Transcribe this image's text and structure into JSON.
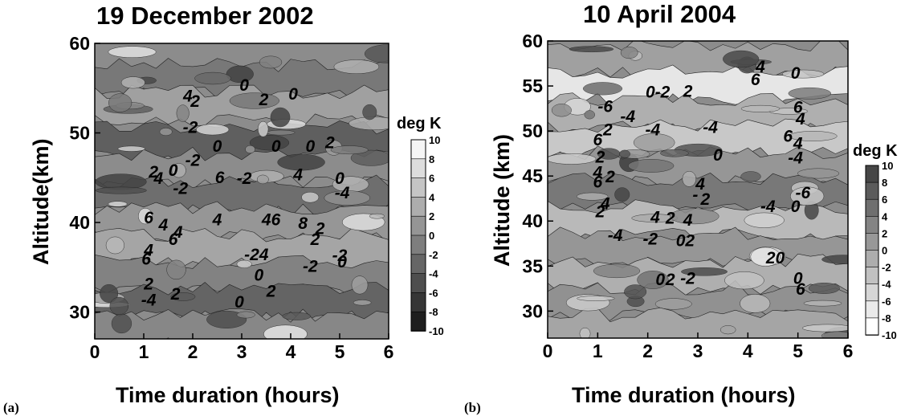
{
  "figure": {
    "panel_labels": [
      "(a)",
      "(b)"
    ],
    "colorbar_label": "deg K",
    "colorbar_ticks": [
      "10",
      "8",
      "6",
      "4",
      "2",
      "0",
      "-2",
      "-4",
      "-6",
      "-8",
      "-10"
    ]
  },
  "chart_data": [
    {
      "type": "heatmap",
      "title": "19 December 2002",
      "xlabel": "Time duration (hours)",
      "ylabel": "Altitude(km)",
      "xlim": [
        0,
        6
      ],
      "ylim": [
        27,
        60
      ],
      "xticks": [
        "0",
        "1",
        "2",
        "3",
        "4",
        "5",
        "6"
      ],
      "yticks": [
        "30",
        "40",
        "50",
        "60"
      ],
      "colorbar": {
        "label": "deg K",
        "range": [
          -10,
          10
        ],
        "scale": "white=+10, black=-10"
      },
      "contour_labels": [
        {
          "x": 1.9,
          "y": 54.0,
          "text": "4"
        },
        {
          "x": 2.05,
          "y": 53.4,
          "text": "2"
        },
        {
          "x": 3.05,
          "y": 55.2,
          "text": "0"
        },
        {
          "x": 3.45,
          "y": 53.6,
          "text": "2"
        },
        {
          "x": 4.05,
          "y": 54.2,
          "text": "0"
        },
        {
          "x": 1.95,
          "y": 50.5,
          "text": "-2"
        },
        {
          "x": 2.0,
          "y": 46.8,
          "text": "-2"
        },
        {
          "x": 2.5,
          "y": 48.4,
          "text": "0"
        },
        {
          "x": 3.7,
          "y": 48.4,
          "text": "0"
        },
        {
          "x": 4.4,
          "y": 48.4,
          "text": "0"
        },
        {
          "x": 4.8,
          "y": 48.8,
          "text": "2"
        },
        {
          "x": 1.2,
          "y": 45.5,
          "text": "2"
        },
        {
          "x": 1.6,
          "y": 45.7,
          "text": "0"
        },
        {
          "x": 1.3,
          "y": 44.8,
          "text": "4"
        },
        {
          "x": 1.75,
          "y": 43.7,
          "text": "-2"
        },
        {
          "x": 2.55,
          "y": 44.9,
          "text": "6"
        },
        {
          "x": 3.05,
          "y": 44.8,
          "text": "-2"
        },
        {
          "x": 4.15,
          "y": 45.2,
          "text": "4"
        },
        {
          "x": 5.0,
          "y": 44.8,
          "text": "0"
        },
        {
          "x": 5.05,
          "y": 43.2,
          "text": "-4"
        },
        {
          "x": 1.1,
          "y": 40.4,
          "text": "6"
        },
        {
          "x": 1.4,
          "y": 39.6,
          "text": "4"
        },
        {
          "x": 1.7,
          "y": 38.8,
          "text": "4"
        },
        {
          "x": 1.6,
          "y": 38.0,
          "text": "6"
        },
        {
          "x": 2.5,
          "y": 40.2,
          "text": "4"
        },
        {
          "x": 3.6,
          "y": 40.2,
          "text": "46"
        },
        {
          "x": 4.25,
          "y": 39.8,
          "text": "8"
        },
        {
          "x": 4.6,
          "y": 39.2,
          "text": "2"
        },
        {
          "x": 4.5,
          "y": 38.0,
          "text": "2"
        },
        {
          "x": 3.3,
          "y": 36.3,
          "text": "-24"
        },
        {
          "x": 1.1,
          "y": 36.8,
          "text": "4"
        },
        {
          "x": 1.05,
          "y": 35.8,
          "text": "6"
        },
        {
          "x": 3.35,
          "y": 34.0,
          "text": "0"
        },
        {
          "x": 4.4,
          "y": 35.0,
          "text": "-2"
        },
        {
          "x": 5.0,
          "y": 36.2,
          "text": "-2"
        },
        {
          "x": 5.05,
          "y": 35.5,
          "text": "0"
        },
        {
          "x": 1.1,
          "y": 33.0,
          "text": "2"
        },
        {
          "x": 1.1,
          "y": 31.2,
          "text": "-4"
        },
        {
          "x": 1.65,
          "y": 31.9,
          "text": "2"
        },
        {
          "x": 3.6,
          "y": 32.2,
          "text": "2"
        },
        {
          "x": 2.95,
          "y": 31.0,
          "text": "0"
        }
      ]
    },
    {
      "type": "heatmap",
      "title": "10 April 2004",
      "xlabel": "Time duration (hours)",
      "ylabel": "Altitude (km)",
      "xlim": [
        0,
        6
      ],
      "ylim": [
        27,
        60
      ],
      "xticks": [
        "0",
        "1",
        "2",
        "3",
        "4",
        "5",
        "6"
      ],
      "yticks": [
        "30",
        "35",
        "40",
        "45",
        "50",
        "55",
        "60"
      ],
      "colorbar": {
        "label": "deg K",
        "range": [
          -10,
          10
        ],
        "scale": "black=+10, white=-10"
      },
      "contour_labels": [
        {
          "x": 2.2,
          "y": 54.2,
          "text": "0-2"
        },
        {
          "x": 2.8,
          "y": 54.3,
          "text": "2"
        },
        {
          "x": 4.25,
          "y": 57.0,
          "text": "4"
        },
        {
          "x": 4.15,
          "y": 55.6,
          "text": "6"
        },
        {
          "x": 4.95,
          "y": 56.3,
          "text": "0"
        },
        {
          "x": 5.0,
          "y": 52.5,
          "text": "6"
        },
        {
          "x": 5.05,
          "y": 51.2,
          "text": "4"
        },
        {
          "x": 1.15,
          "y": 52.6,
          "text": "-6"
        },
        {
          "x": 1.6,
          "y": 51.5,
          "text": "-4"
        },
        {
          "x": 2.1,
          "y": 50.0,
          "text": "-4"
        },
        {
          "x": 3.25,
          "y": 50.3,
          "text": "-4"
        },
        {
          "x": 1.2,
          "y": 50.0,
          "text": "2"
        },
        {
          "x": 1.0,
          "y": 48.9,
          "text": "6"
        },
        {
          "x": 4.8,
          "y": 49.3,
          "text": "6"
        },
        {
          "x": 5.0,
          "y": 48.5,
          "text": "4"
        },
        {
          "x": 4.95,
          "y": 46.9,
          "text": "-4"
        },
        {
          "x": 1.05,
          "y": 47.0,
          "text": "2"
        },
        {
          "x": 1.0,
          "y": 45.3,
          "text": "4"
        },
        {
          "x": 1.25,
          "y": 44.8,
          "text": "2"
        },
        {
          "x": 1.0,
          "y": 44.2,
          "text": "6"
        },
        {
          "x": 3.4,
          "y": 47.2,
          "text": "0"
        },
        {
          "x": 3.05,
          "y": 44.0,
          "text": "4"
        },
        {
          "x": 2.95,
          "y": 42.8,
          "text": "-"
        },
        {
          "x": 3.15,
          "y": 42.3,
          "text": "2"
        },
        {
          "x": 1.15,
          "y": 41.8,
          "text": "4"
        },
        {
          "x": 1.05,
          "y": 40.9,
          "text": "2"
        },
        {
          "x": 4.4,
          "y": 41.5,
          "text": "-4"
        },
        {
          "x": 4.95,
          "y": 41.5,
          "text": "0"
        },
        {
          "x": 5.1,
          "y": 43.0,
          "text": "-6"
        },
        {
          "x": 2.15,
          "y": 40.3,
          "text": "4"
        },
        {
          "x": 2.45,
          "y": 40.2,
          "text": "2"
        },
        {
          "x": 2.8,
          "y": 40.0,
          "text": "4"
        },
        {
          "x": 1.35,
          "y": 38.3,
          "text": "-4"
        },
        {
          "x": 2.05,
          "y": 37.9,
          "text": "-2"
        },
        {
          "x": 2.75,
          "y": 37.7,
          "text": "02"
        },
        {
          "x": 4.55,
          "y": 35.8,
          "text": "20"
        },
        {
          "x": 2.25,
          "y": 33.4,
          "text": "0"
        },
        {
          "x": 2.45,
          "y": 33.4,
          "text": "2"
        },
        {
          "x": 2.8,
          "y": 33.5,
          "text": "-2"
        },
        {
          "x": 5.0,
          "y": 33.5,
          "text": "0"
        },
        {
          "x": 5.05,
          "y": 32.3,
          "text": "6"
        }
      ]
    }
  ]
}
